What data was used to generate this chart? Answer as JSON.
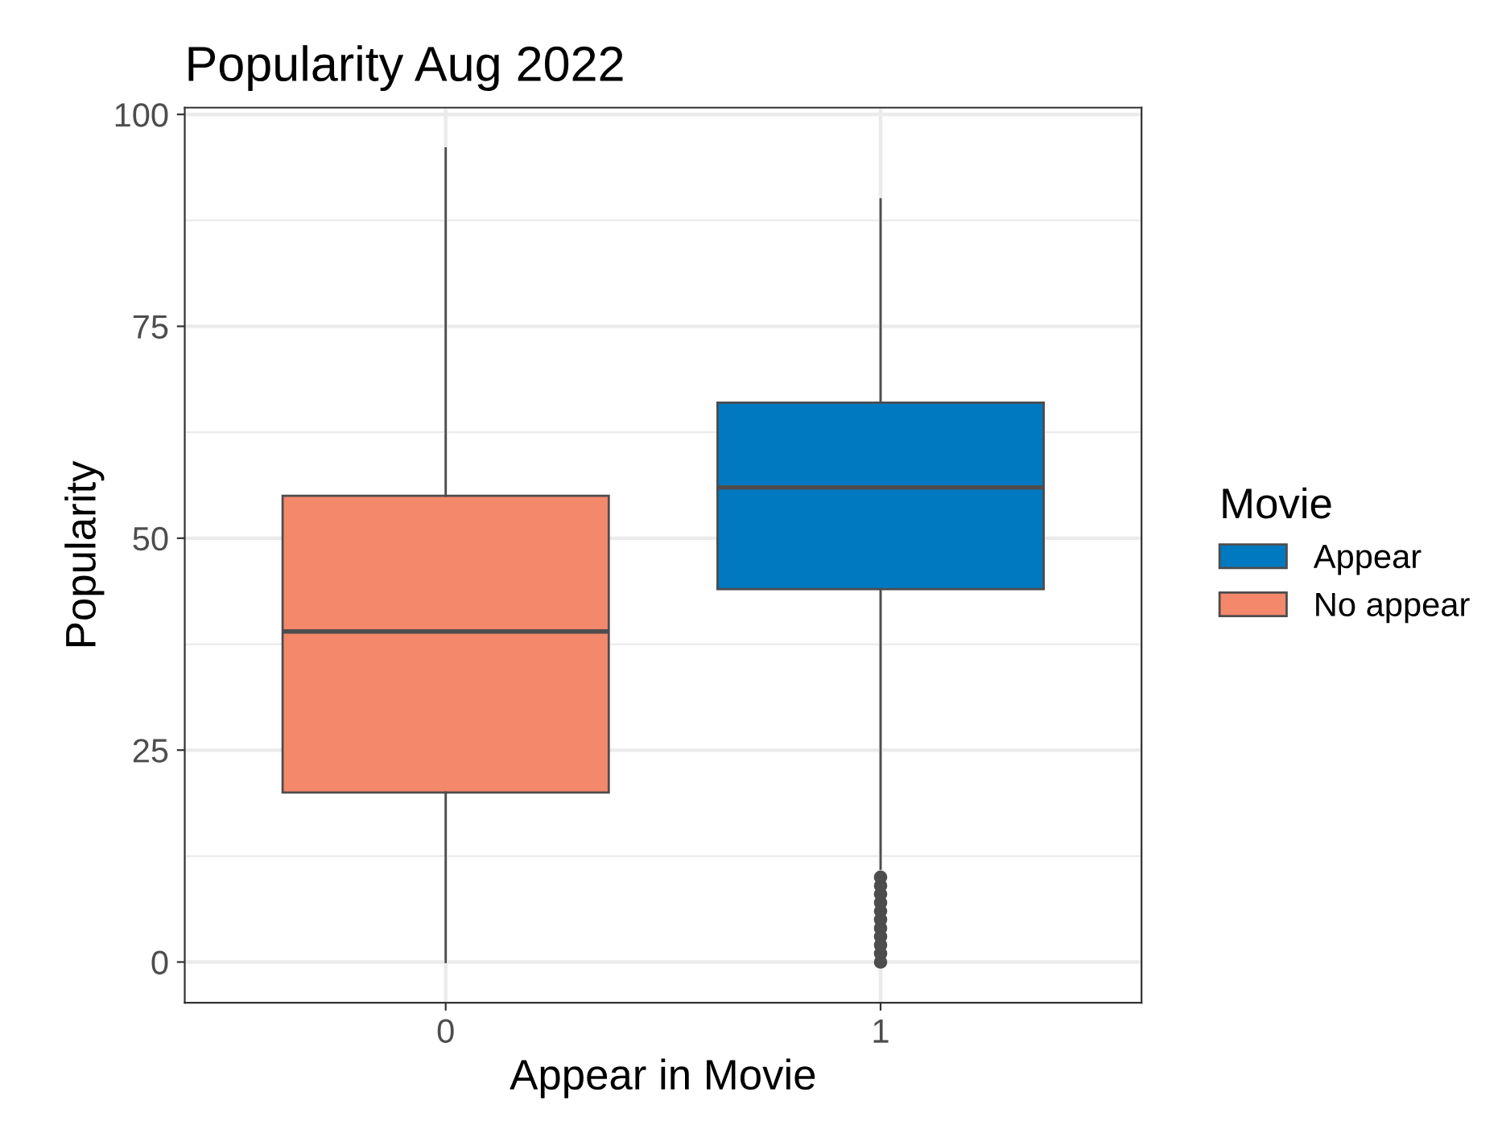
{
  "chart_data": {
    "type": "box",
    "title": "Popularity Aug 2022",
    "xlabel": "Appear in Movie",
    "ylabel": "Popularity",
    "legend_title": "Movie",
    "categories": [
      "0",
      "1"
    ],
    "series": [
      {
        "name": "Appear",
        "color": "#0079c1",
        "boxes": [
          null,
          {
            "low": 11,
            "q1": 44,
            "median": 56,
            "q3": 66,
            "high": 90,
            "outliers": [
              0,
              1,
              2,
              3,
              4,
              5,
              6,
              7,
              8,
              9,
              10
            ]
          }
        ]
      },
      {
        "name": "No appear",
        "color": "#f4886b",
        "boxes": [
          {
            "low": 0,
            "q1": 20,
            "median": 39,
            "q3": 55,
            "high": 96
          },
          null
        ]
      }
    ],
    "ylim": [
      -4.8,
      100.8
    ],
    "yticks": [
      0,
      25,
      50,
      75,
      100
    ],
    "grid": true,
    "legend": "right"
  }
}
